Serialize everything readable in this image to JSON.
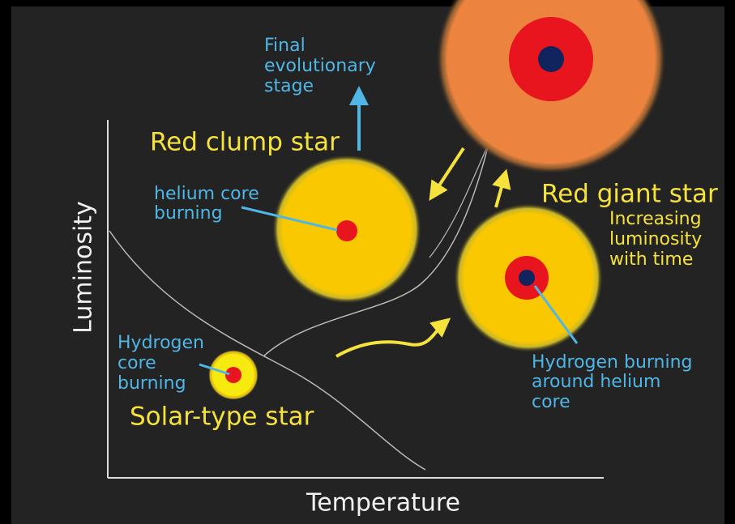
{
  "axes": {
    "y_label": "Luminosity",
    "x_label": "Temperature"
  },
  "final_stage": [
    "Final",
    "evolutionary",
    "stage"
  ],
  "stars": [
    {
      "name": "Solar-type star",
      "note": [
        "Hydrogen",
        "core",
        "burning"
      ]
    },
    {
      "name": "Red clump star",
      "note": [
        "helium core",
        "burning"
      ]
    },
    {
      "name": "Red giant star",
      "subtitle": [
        "Increasing",
        "luminosity",
        "with time"
      ],
      "note": [
        "Hydrogen burning",
        "around helium",
        "core"
      ]
    }
  ]
}
